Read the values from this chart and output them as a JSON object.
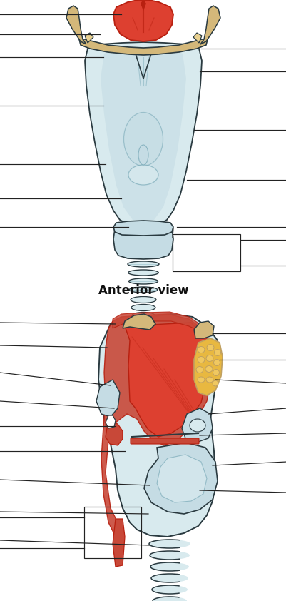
{
  "bg_color": "#ffffff",
  "title": "Anterior view",
  "title_fontsize": 12,
  "fig_width": 4.02,
  "fig_height": 8.42,
  "dpi": 100,
  "line_col": "#222222",
  "colors": {
    "ice_fill": "#c5dce4",
    "ice_light": "#d8eaee",
    "ice_dark": "#7aaab8",
    "ice_mid": "#a8c8d4",
    "cream": "#d4b87a",
    "cream_lt": "#e8d090",
    "cream_dark": "#c0a060",
    "red_dark": "#b82010",
    "red_med": "#cc3020",
    "red_bright": "#dd4030",
    "red_muted": "#c84838",
    "outline": "#444444",
    "dark_line": "#2a3a40",
    "white_ish": "#e8f0f2",
    "grey_blue": "#b0c8d0"
  }
}
